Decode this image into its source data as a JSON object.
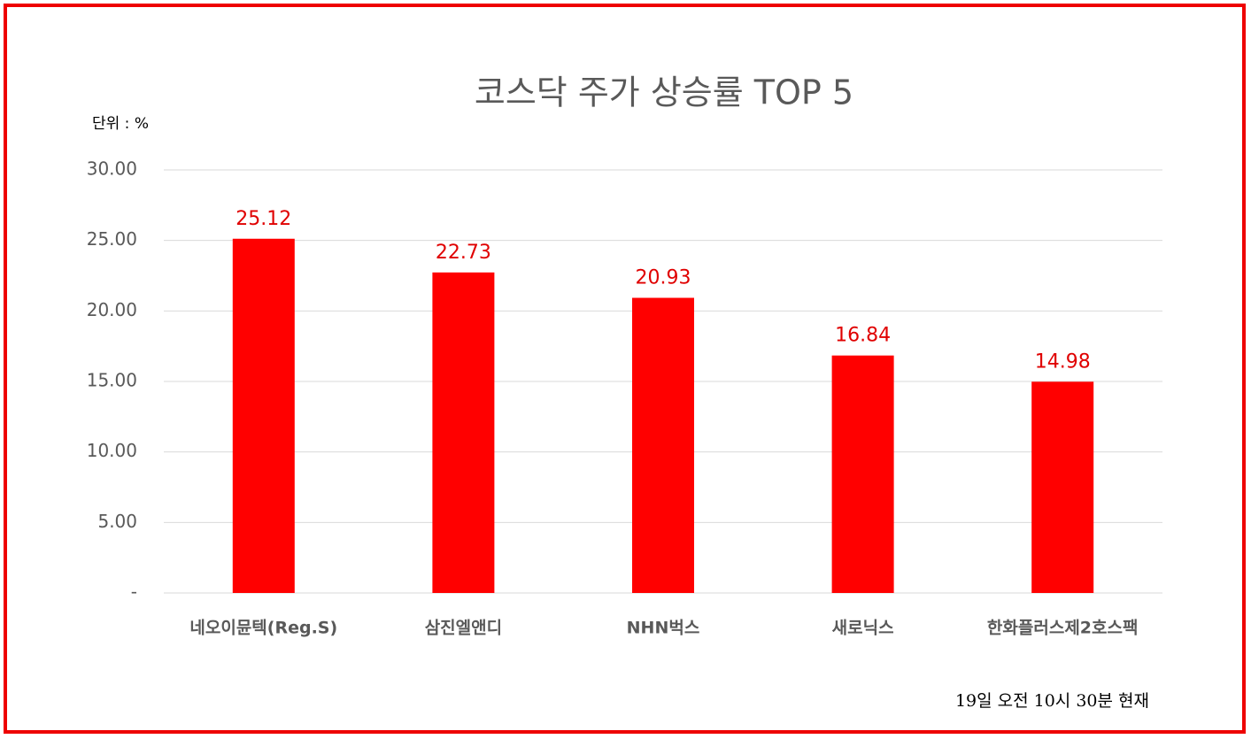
{
  "chart_data": {
    "type": "bar",
    "title": "코스닥 주가 상승률 TOP 5",
    "unit_label": "단위 : %",
    "categories": [
      "네오이뮨텍(Reg.S)",
      "삼진엘앤디",
      "NHN벅스",
      "새로닉스",
      "한화플러스제2호스팩"
    ],
    "values": [
      25.12,
      22.73,
      20.93,
      16.84,
      14.98
    ],
    "color": "#ff0000",
    "ylim": [
      0,
      30
    ],
    "yticks": [
      {
        "value": 0,
        "label": "-"
      },
      {
        "value": 5,
        "label": "5.00"
      },
      {
        "value": 10,
        "label": "10.00"
      },
      {
        "value": 15,
        "label": "15.00"
      },
      {
        "value": 20,
        "label": "20.00"
      },
      {
        "value": 25,
        "label": "25.00"
      },
      {
        "value": 30,
        "label": "30.00"
      }
    ],
    "grid": true,
    "note": "19일  오전 10시 30분 현재"
  }
}
